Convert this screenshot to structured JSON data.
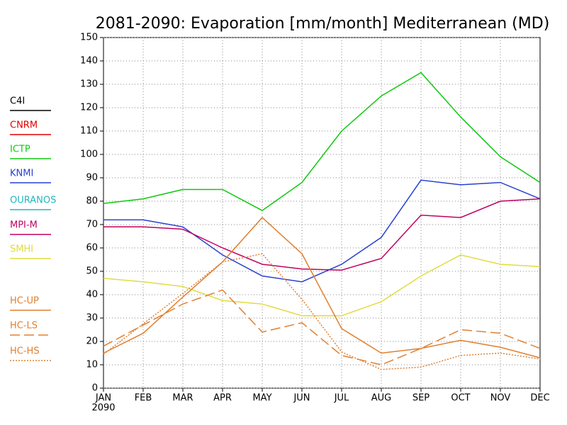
{
  "chart_data": {
    "type": "line",
    "title": "2081-2090: Evaporation [mm/month] Mediterranean (MD)",
    "categories": [
      "JAN",
      "FEB",
      "MAR",
      "APR",
      "MAY",
      "JUN",
      "JUL",
      "AUG",
      "SEP",
      "OCT",
      "NOV",
      "DEC"
    ],
    "year_label": "2090",
    "ylim": [
      0,
      150
    ],
    "yticks": [
      0,
      10,
      20,
      30,
      40,
      50,
      60,
      70,
      80,
      90,
      100,
      110,
      120,
      130,
      140,
      150
    ],
    "grid": true,
    "legend": "left",
    "series": [
      {
        "name": "C4I",
        "color": "#000000",
        "style": "solid",
        "values": [
          null,
          null,
          null,
          null,
          null,
          null,
          null,
          null,
          null,
          null,
          null,
          null
        ]
      },
      {
        "name": "CNRM",
        "color": "#e00000",
        "style": "solid",
        "values": [
          null,
          null,
          null,
          null,
          null,
          null,
          null,
          null,
          null,
          null,
          null,
          null
        ]
      },
      {
        "name": "ICTP",
        "color": "#10c810",
        "style": "solid",
        "values": [
          79,
          81,
          85,
          85,
          76,
          88,
          110,
          125,
          135,
          116,
          99,
          88
        ]
      },
      {
        "name": "KNMI",
        "color": "#2840d0",
        "style": "solid",
        "values": [
          72,
          72,
          69,
          57,
          48,
          45.5,
          53,
          64.5,
          89,
          87,
          88,
          81
        ]
      },
      {
        "name": "OURANOS",
        "color": "#20b8c0",
        "style": "solid",
        "values": [
          null,
          null,
          null,
          null,
          null,
          null,
          null,
          null,
          null,
          null,
          null,
          null
        ]
      },
      {
        "name": "MPI-M",
        "color": "#c00060",
        "style": "solid",
        "values": [
          69,
          69,
          68,
          60,
          53,
          51,
          50.5,
          55.5,
          74,
          73,
          80,
          81
        ]
      },
      {
        "name": "SMHI",
        "color": "#e0dc40",
        "style": "solid",
        "values": [
          47,
          45.5,
          43.5,
          37.5,
          36,
          31,
          31,
          37,
          48,
          57,
          53,
          52
        ]
      },
      {
        "name": "HC-UP",
        "color": "#e08030",
        "style": "solid",
        "values": [
          15,
          23.5,
          39,
          54,
          73,
          57.5,
          25.5,
          15,
          17,
          20.5,
          17.5,
          13
        ]
      },
      {
        "name": "HC-LS",
        "color": "#e08030",
        "style": "dashed",
        "values": [
          18,
          27,
          36,
          42,
          24,
          28,
          14,
          10,
          17,
          25,
          23.5,
          17
        ]
      },
      {
        "name": "HC-HS",
        "color": "#e08030",
        "style": "dotted",
        "values": [
          14.5,
          27.5,
          40.5,
          54,
          57.5,
          38,
          15.5,
          8,
          9,
          14,
          15,
          12.5
        ]
      }
    ]
  }
}
